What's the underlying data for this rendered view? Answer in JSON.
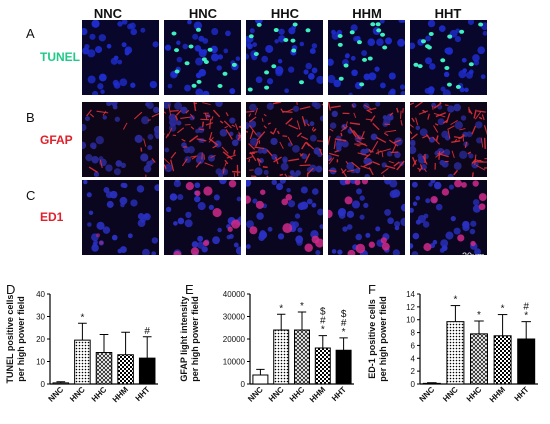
{
  "micrographs": {
    "columns": [
      "NNC",
      "HNC",
      "HHC",
      "HHM",
      "HHT"
    ],
    "rows": [
      {
        "letter": "A",
        "label": "TUNEL",
        "label_color": "#1fc98a",
        "background": "#08062a",
        "nuclei_color": "#1e2ccc"
      },
      {
        "letter": "B",
        "label": "GFAP",
        "label_color": "#e0202a",
        "background": "#0c0618",
        "nuclei_color": "#2a2a9a"
      },
      {
        "letter": "C",
        "label": "ED1",
        "label_color": "#e0202a",
        "background": "#0a0620",
        "nuclei_color": "#2a30c0"
      }
    ],
    "scale_bar": "20um"
  },
  "chart_data": [
    {
      "panel": "D",
      "type": "bar",
      "categories": [
        "NNC",
        "HNC",
        "HHC",
        "HHM",
        "HHT"
      ],
      "values": [
        0.5,
        19.5,
        14,
        13,
        11.5
      ],
      "errors": [
        0.5,
        7.5,
        8,
        10,
        9.5
      ],
      "markers": [
        "",
        "*",
        "",
        "",
        "#"
      ],
      "ylabel": "TUNEL positive cells\nper high power field",
      "ylim": [
        0,
        40
      ],
      "yticks": [
        0,
        10,
        20,
        30,
        40
      ]
    },
    {
      "panel": "E",
      "type": "bar",
      "categories": [
        "NNC",
        "HNC",
        "HHC",
        "HHM",
        "HHT"
      ],
      "values": [
        4000,
        24000,
        24000,
        16000,
        15000
      ],
      "errors": [
        2500,
        7000,
        8000,
        5500,
        5500
      ],
      "markers": [
        "",
        "*",
        "*",
        "$\n#\n*",
        "$\n#\n*"
      ],
      "ylabel": "GFAP light intensity\nper high power field",
      "ylim": [
        0,
        40000
      ],
      "yticks": [
        0,
        10000,
        20000,
        30000,
        40000
      ]
    },
    {
      "panel": "F",
      "type": "bar",
      "categories": [
        "NNC",
        "HNC",
        "HHC",
        "HHM",
        "HHT"
      ],
      "values": [
        0.1,
        9.7,
        7.8,
        7.5,
        7.0
      ],
      "errors": [
        0.1,
        2.5,
        2.0,
        3.3,
        2.7
      ],
      "markers": [
        "",
        "*",
        "*",
        "*",
        "#\n*"
      ],
      "ylabel": "ED-1 positive cells\nper high power field",
      "ylim": [
        0,
        14
      ],
      "yticks": [
        0,
        2,
        4,
        6,
        8,
        10,
        12,
        14
      ]
    }
  ],
  "bar_fills": [
    "white",
    "dots",
    "crosshatch",
    "checker",
    "black"
  ]
}
